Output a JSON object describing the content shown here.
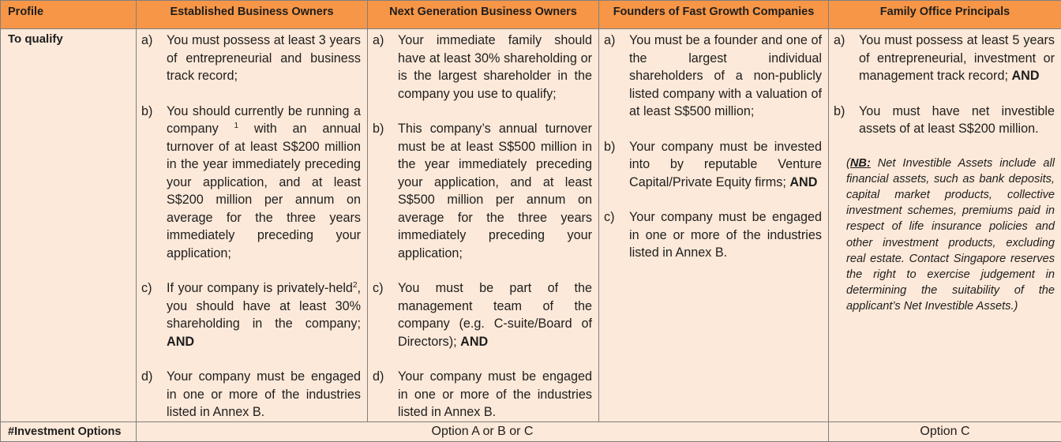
{
  "header": {
    "profile": "Profile",
    "established": "Established Business Owners",
    "next_gen": "Next Generation Business Owners",
    "founders": "Founders of Fast Growth Companies",
    "family_office": "Family Office Principals"
  },
  "qualify_row": {
    "label": "To qualify",
    "established": [
      {
        "marker": "a)",
        "text": "You must possess at least 3 years of entrepreneurial and business track record;"
      },
      {
        "marker": "b)",
        "text_before": "You should currently be running a company ",
        "sup": "1",
        "text_after": " with an annual turnover of at least S$200 million in the year immediately preceding your application, and at least S$200 million per annum on average for the three years immediately preceding your application;"
      },
      {
        "marker": "c)",
        "text_before": "If your company is privately-held",
        "sup": "2",
        "text_after": ", you should have at least 30% shareholding in the company; ",
        "bold_tail": "AND"
      },
      {
        "marker": "d)",
        "text": "Your company must be engaged in one or more of the industries listed in Annex B."
      }
    ],
    "next_gen": [
      {
        "marker": "a)",
        "text": "Your immediate family should have at least 30% shareholding or is the largest shareholder in the company you use to qualify;"
      },
      {
        "marker": "b)",
        "text": "This company’s annual turnover must be at least S$500 million in the year immediately preceding your application, and at least S$500 million per annum on average for the three years immediately preceding your application;"
      },
      {
        "marker": "c)",
        "text": "You must be part of the management team of the company (e.g. C-suite/Board of Directors); ",
        "bold_tail": "AND"
      },
      {
        "marker": "d)",
        "text": "Your company must be engaged in one or more of the industries listed in Annex B."
      }
    ],
    "founders": [
      {
        "marker": "a)",
        "text": "You must be a founder and one of the largest individual shareholders of a non-publicly listed company with a valuation of at least S$500 million;"
      },
      {
        "marker": "b)",
        "text": "Your company must be invested into by reputable Venture Capital/Private Equity firms; ",
        "bold_tail": "AND"
      },
      {
        "marker": "c)",
        "text": "Your company must be engaged in one or more of the industries listed in Annex B."
      }
    ],
    "family_office": [
      {
        "marker": "a)",
        "text": "You must possess at least 5 years of entrepreneurial, investment or management track record; ",
        "bold_tail": "AND"
      },
      {
        "marker": "b)",
        "text": "You must have net investible assets of at least S$200 million."
      }
    ],
    "family_office_note": {
      "open": "(",
      "label": "NB:",
      "text": " Net Investible Assets include all financial assets, such as bank deposits, capital market products, collective investment schemes, premiums paid in respect of life insurance policies and other investment products, excluding real estate. Contact Singapore reserves the right to exercise judgement in determining the suitability of the applicant’s Net Investible Assets.)"
    }
  },
  "investment_row": {
    "label": "#Investment Options",
    "option_abc": "Option A or B or C",
    "option_c": "Option C"
  }
}
